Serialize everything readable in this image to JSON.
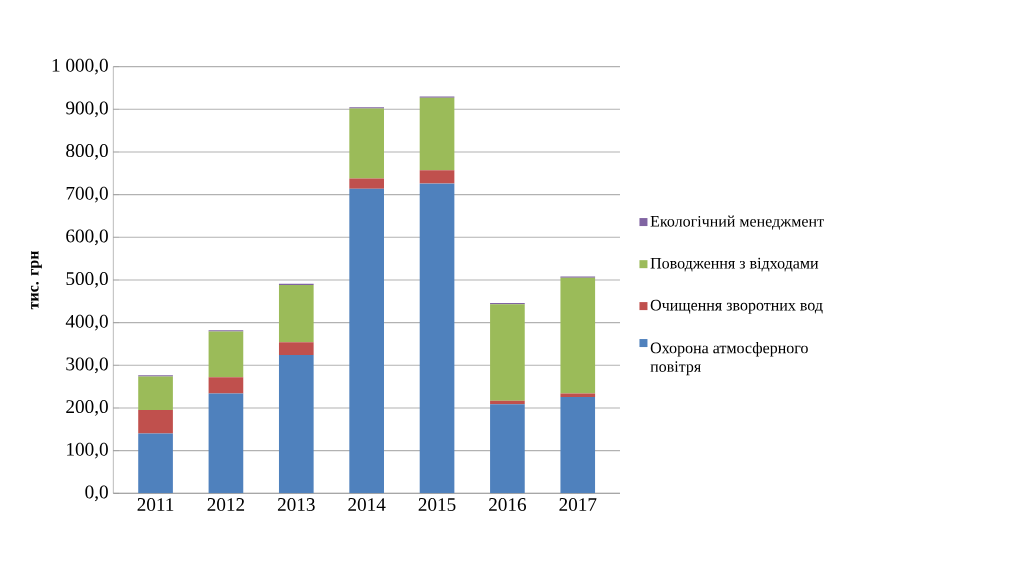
{
  "chart_data": {
    "type": "bar",
    "stacked": true,
    "ylabel": "тис. грн",
    "categories": [
      "2011",
      "2012",
      "2013",
      "2014",
      "2015",
      "2016",
      "2017"
    ],
    "series": [
      {
        "name": "Охорона атмосферного повітря",
        "color": "#4f81bd",
        "values": [
          140,
          234,
          324,
          714,
          726,
          209,
          226
        ]
      },
      {
        "name": "Очищення зворотних вод",
        "color": "#c0504d",
        "values": [
          55,
          38,
          30,
          24,
          31,
          8,
          8
        ]
      },
      {
        "name": "Поводження з відходами",
        "color": "#9bbb59",
        "values": [
          79,
          107,
          134,
          164,
          170,
          226,
          271
        ]
      },
      {
        "name": "Екологічний менеджмент",
        "color": "#8064a2",
        "values": [
          3,
          3,
          3,
          3,
          3,
          3,
          3
        ]
      }
    ],
    "ylim": [
      0,
      1000
    ],
    "yticks": [
      {
        "value": 0,
        "label": "0,0"
      },
      {
        "value": 100,
        "label": "100,0"
      },
      {
        "value": 200,
        "label": "200,0"
      },
      {
        "value": 300,
        "label": "300,0"
      },
      {
        "value": 400,
        "label": "400,0"
      },
      {
        "value": 500,
        "label": "500,0"
      },
      {
        "value": 600,
        "label": "600,0"
      },
      {
        "value": 700,
        "label": "700,0"
      },
      {
        "value": 800,
        "label": "800,0"
      },
      {
        "value": 900,
        "label": "900,0"
      },
      {
        "value": 1000,
        "label": "1 000,0"
      }
    ],
    "grid": "y",
    "legend": "right"
  }
}
